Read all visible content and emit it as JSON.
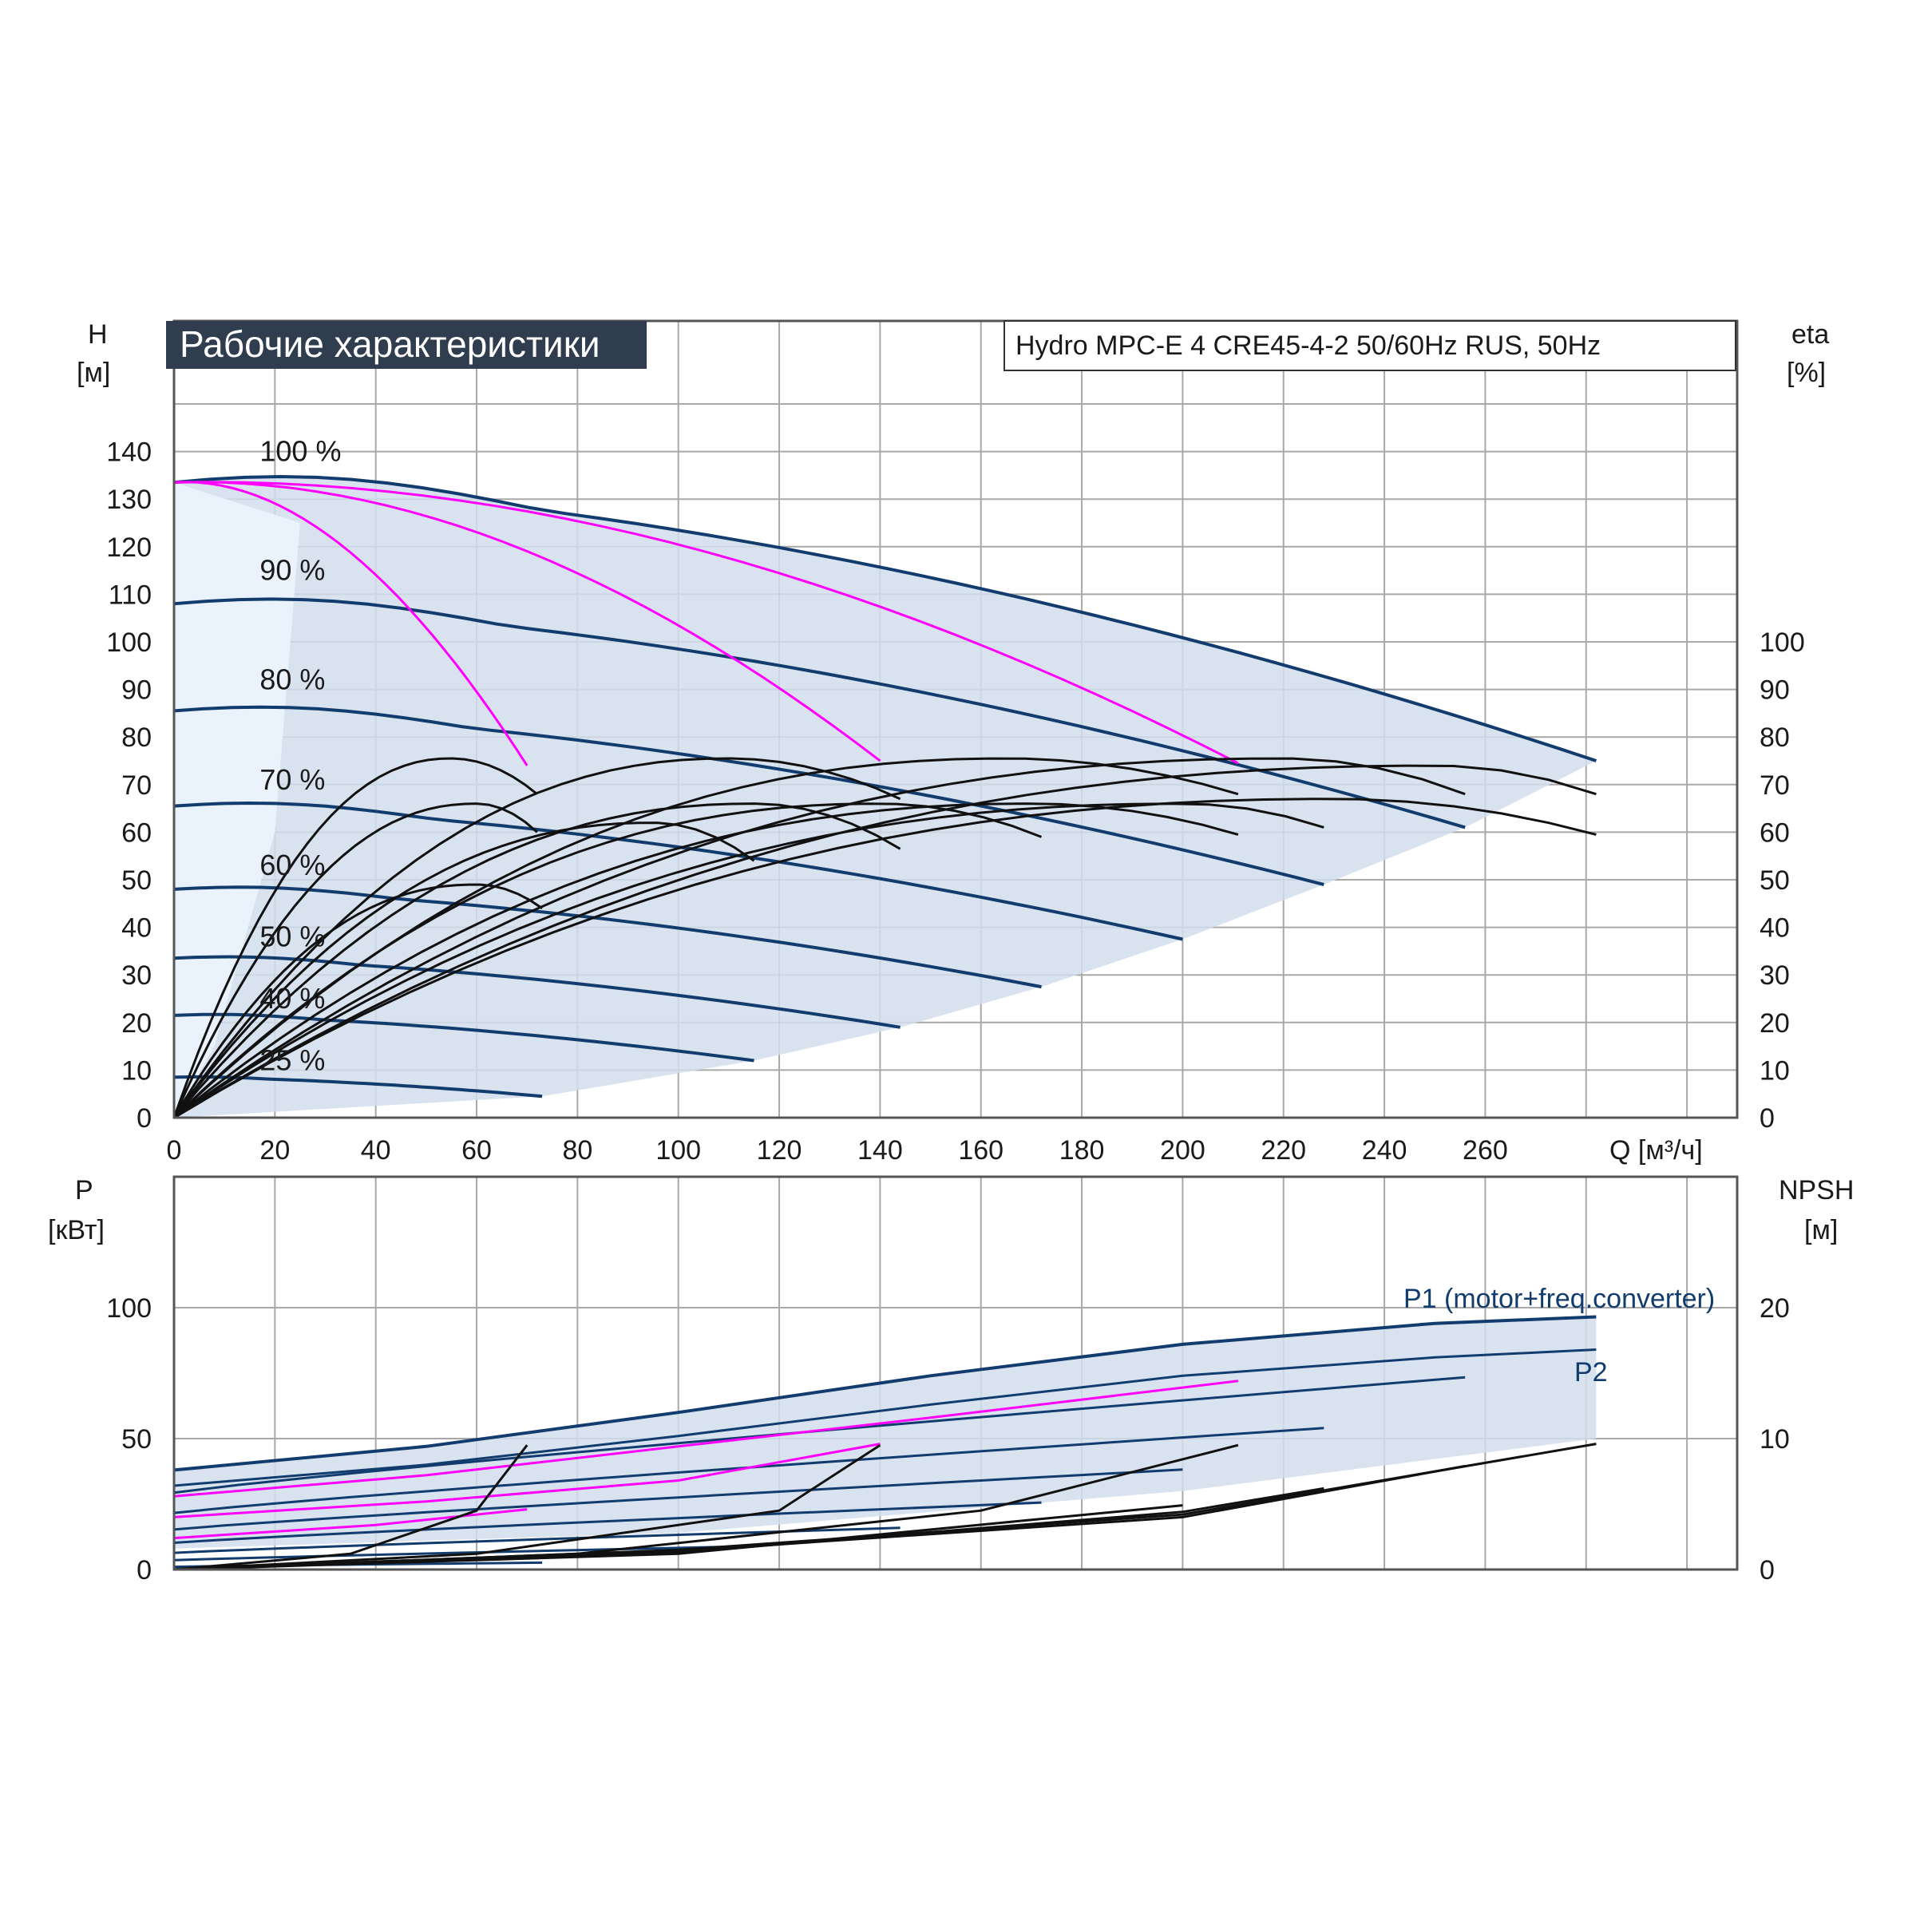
{
  "header": {
    "title": "Рабочие характеристики",
    "model": "Hydro MPC-E 4 CRE45-4-2 50/60Hz RUS, 50Hz"
  },
  "axes": {
    "head": {
      "name": "H",
      "unit": "[м]"
    },
    "efficiency": {
      "name": "eta",
      "unit": "[%]"
    },
    "flow": {
      "label": "Q [м³/ч]"
    },
    "power": {
      "name": "P",
      "unit": "[кВт]"
    },
    "npsh": {
      "name": "NPSH",
      "unit": "[м]"
    }
  },
  "labels": {
    "p1": "P1 (motor+freq.converter)",
    "p2": "P2"
  },
  "colors": {
    "title_bg": "#2f3d4f",
    "qh_curve": "#123c6e",
    "eff_curve": "#111111",
    "system_curve": "#ff00ff",
    "envelope_fill": "#d2deed",
    "grid": "#a8a8a8"
  },
  "chart_data": [
    {
      "type": "line",
      "title": "Рабочие характеристики",
      "xlabel": "Q [м³/ч]",
      "ylabel": "H [м]",
      "y2label": "eta [%]",
      "xlim": [
        0,
        310
      ],
      "ylim": [
        0,
        150
      ],
      "y2lim": [
        0,
        150
      ],
      "grid": true,
      "x_ticks": [
        0,
        20,
        40,
        60,
        80,
        100,
        120,
        140,
        160,
        180,
        200,
        220,
        240,
        260
      ],
      "y_ticks": [
        0,
        10,
        20,
        30,
        40,
        50,
        60,
        70,
        80,
        90,
        100,
        110,
        120,
        130,
        140
      ],
      "y2_ticks": [
        0,
        10,
        20,
        30,
        40,
        50,
        60,
        70,
        80,
        90,
        100
      ],
      "speed_labels": [
        {
          "text": "100 %",
          "x": 17,
          "y": 140
        },
        {
          "text": "90 %",
          "x": 17,
          "y": 115
        },
        {
          "text": "80 %",
          "x": 17,
          "y": 92
        },
        {
          "text": "70 %",
          "x": 17,
          "y": 71
        },
        {
          "text": "60 %",
          "x": 17,
          "y": 53
        },
        {
          "text": "50 %",
          "x": 17,
          "y": 38
        },
        {
          "text": "40 %",
          "x": 17,
          "y": 25
        },
        {
          "text": "25 %",
          "x": 17,
          "y": 12
        }
      ],
      "qh_curves": [
        {
          "speed": "100 %",
          "H0": 133.5,
          "Q_end": 282,
          "H_end": 75
        },
        {
          "speed": "90 %",
          "H0": 108,
          "Q_end": 256,
          "H_end": 61
        },
        {
          "speed": "80 %",
          "H0": 85.5,
          "Q_end": 228,
          "H_end": 49
        },
        {
          "speed": "70 %",
          "H0": 65.5,
          "Q_end": 200,
          "H_end": 37.5
        },
        {
          "speed": "60 %",
          "H0": 48,
          "Q_end": 172,
          "H_end": 27.5
        },
        {
          "speed": "50 %",
          "H0": 33.5,
          "Q_end": 144,
          "H_end": 19
        },
        {
          "speed": "40 %",
          "H0": 21.5,
          "Q_end": 115,
          "H_end": 12
        },
        {
          "speed": "25 %",
          "H0": 8.5,
          "Q_end": 73,
          "H_end": 4.5
        }
      ],
      "envelope_lower": [
        [
          0,
          0
        ],
        [
          73,
          4.5
        ],
        [
          115,
          12
        ],
        [
          144,
          19
        ],
        [
          172,
          27.5
        ],
        [
          200,
          37.5
        ],
        [
          228,
          49
        ],
        [
          256,
          61
        ],
        [
          282,
          75
        ]
      ],
      "system_curves": [
        {
          "from": [
            0,
            133.5
          ],
          "to": [
            70,
            74
          ]
        },
        {
          "from": [
            0,
            133.5
          ],
          "to": [
            140,
            75
          ]
        },
        {
          "from": [
            0,
            133.5
          ],
          "to": [
            211,
            74.5
          ]
        }
      ],
      "efficiency_curves": [
        {
          "peak_x": 55,
          "peak_y": 75.5,
          "end_x": 72,
          "end_y": 68
        },
        {
          "peak_x": 60,
          "peak_y": 66,
          "end_x": 72,
          "end_y": 60
        },
        {
          "peak_x": 60,
          "peak_y": 49,
          "end_x": 73,
          "end_y": 44
        },
        {
          "peak_x": 110,
          "peak_y": 75.5,
          "end_x": 144,
          "end_y": 67
        },
        {
          "peak_x": 115,
          "peak_y": 66,
          "end_x": 144,
          "end_y": 56.5
        },
        {
          "peak_x": 95,
          "peak_y": 62,
          "end_x": 115,
          "end_y": 54
        },
        {
          "peak_x": 165,
          "peak_y": 75.5,
          "end_x": 211,
          "end_y": 68
        },
        {
          "peak_x": 170,
          "peak_y": 66,
          "end_x": 211,
          "end_y": 59.5
        },
        {
          "peak_x": 140,
          "peak_y": 66,
          "end_x": 172,
          "end_y": 59
        },
        {
          "peak_x": 220,
          "peak_y": 75.5,
          "end_x": 256,
          "end_y": 68
        },
        {
          "peak_x": 230,
          "peak_y": 67,
          "end_x": 282,
          "end_y": 59.5
        },
        {
          "peak_x": 250,
          "peak_y": 74,
          "end_x": 282,
          "end_y": 68
        },
        {
          "peak_x": 200,
          "peak_y": 66,
          "end_x": 228,
          "end_y": 61
        }
      ]
    },
    {
      "type": "line",
      "xlabel": "Q [м³/ч]",
      "ylabel": "P [кВт]",
      "y2label": "NPSH [м]",
      "xlim": [
        0,
        310
      ],
      "ylim": [
        0,
        150
      ],
      "y2lim": [
        0,
        30
      ],
      "grid": true,
      "y_ticks": [
        0,
        50,
        100
      ],
      "y2_ticks": [
        0,
        10,
        20
      ],
      "power_curves": [
        {
          "name": "P1 (motor+freq.converter)",
          "points": [
            [
              0,
              38
            ],
            [
              50,
              47
            ],
            [
              100,
              60
            ],
            [
              150,
              74
            ],
            [
              200,
              86
            ],
            [
              250,
              94
            ],
            [
              282,
              96.5
            ]
          ]
        },
        {
          "name": "P2",
          "points": [
            [
              0,
              32
            ],
            [
              50,
              40
            ],
            [
              100,
              51
            ],
            [
              150,
              63
            ],
            [
              200,
              74
            ],
            [
              250,
              81
            ],
            [
              282,
              84
            ]
          ]
        }
      ],
      "system_power_curves": [
        {
          "points": [
            [
              0,
              28
            ],
            [
              50,
              36
            ],
            [
              100,
              47
            ],
            [
              150,
              58
            ],
            [
              211,
              72
            ]
          ]
        },
        {
          "points": [
            [
              0,
              20
            ],
            [
              50,
              26
            ],
            [
              100,
              34
            ],
            [
              140,
              48
            ]
          ]
        },
        {
          "points": [
            [
              0,
              12
            ],
            [
              40,
              17
            ],
            [
              70,
              23
            ]
          ]
        }
      ],
      "npsh_curves": [
        {
          "points": [
            [
              0,
              0
            ],
            [
              100,
              1.5
            ],
            [
              200,
              4.2
            ],
            [
              282,
              9.6
            ]
          ]
        },
        {
          "points": [
            [
              0,
              0
            ],
            [
              100,
              1.4
            ],
            [
              200,
              4.0
            ],
            [
              256,
              7.9
            ]
          ]
        },
        {
          "points": [
            [
              0,
              0
            ],
            [
              100,
              1.3
            ],
            [
              200,
              4.4
            ],
            [
              228,
              6.2
            ]
          ]
        },
        {
          "points": [
            [
              0,
              0
            ],
            [
              100,
              1.2
            ],
            [
              200,
              4.9
            ]
          ]
        },
        {
          "points": [
            [
              0,
              0
            ],
            [
              80,
              1.2
            ],
            [
              160,
              4.5
            ],
            [
              211,
              9.5
            ]
          ]
        },
        {
          "points": [
            [
              0,
              0
            ],
            [
              60,
              1.2
            ],
            [
              120,
              4.5
            ],
            [
              140,
              9.5
            ]
          ]
        },
        {
          "points": [
            [
              0,
              0
            ],
            [
              35,
              1.2
            ],
            [
              60,
              4.5
            ],
            [
              70,
              9.5
            ]
          ]
        }
      ]
    }
  ]
}
